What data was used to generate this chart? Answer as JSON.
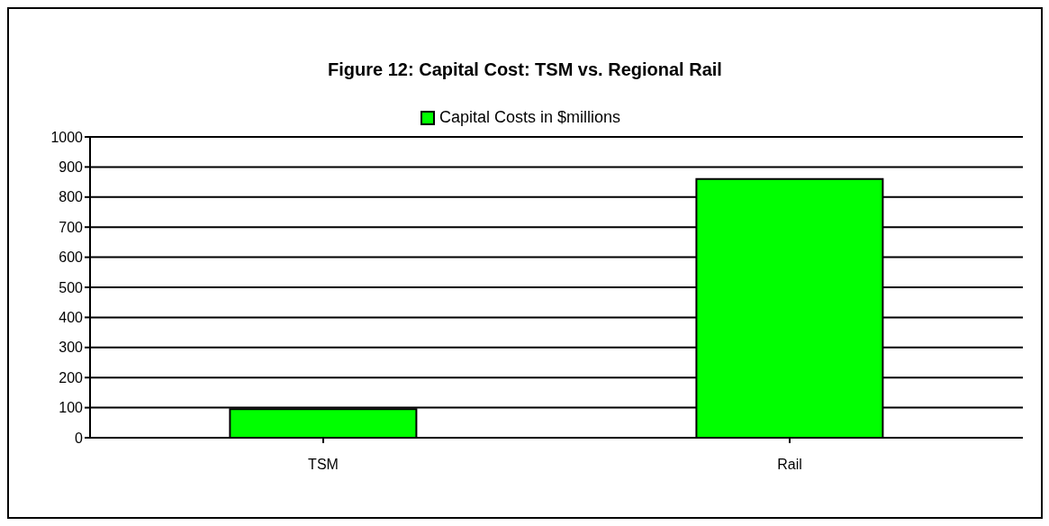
{
  "chart_data": {
    "type": "bar",
    "title": "Figure 12: Capital Cost: TSM vs. Regional Rail",
    "categories": [
      "TSM",
      "Rail"
    ],
    "series": [
      {
        "name": "Capital Costs in $millions",
        "color": "#00ff00",
        "values": [
          95,
          860
        ]
      }
    ],
    "ylim": [
      0,
      1000
    ],
    "yticks": [
      0,
      100,
      200,
      300,
      400,
      500,
      600,
      700,
      800,
      900,
      1000
    ],
    "grid": "y",
    "legend": "top"
  }
}
